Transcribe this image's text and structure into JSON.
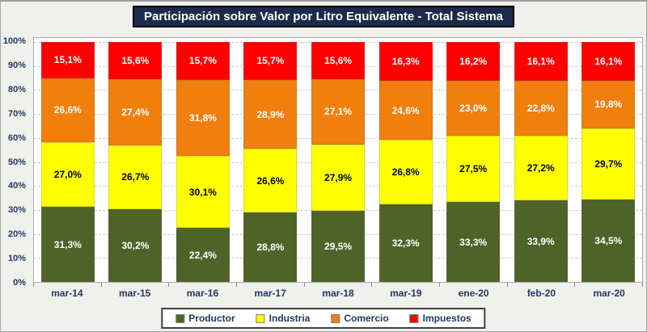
{
  "title": "Participación sobre Valor por Litro Equivalente - Total Sistema",
  "colors": {
    "frame_background": "#F0F0EC",
    "plot_background": "#FFFFFF",
    "title_background": "#1C2B4A",
    "title_text": "#FFFFFF",
    "axis_text": "#1F3864",
    "gridline": "#C9C9C9",
    "productor": "#4F6228",
    "industria": "#FFFF00",
    "comercio": "#F07F0E",
    "impuestos": "#FE0000"
  },
  "chart_data": {
    "type": "bar",
    "stacked": true,
    "title": "Participación sobre Valor por Litro Equivalente - Total Sistema",
    "xlabel": "",
    "ylabel": "",
    "ylim": [
      0,
      100
    ],
    "ytick_step": 10,
    "yticks": [
      "0%",
      "10%",
      "20%",
      "30%",
      "40%",
      "50%",
      "60%",
      "70%",
      "80%",
      "90%",
      "100%"
    ],
    "grid": "dashed-horizontal",
    "legend_position": "bottom",
    "value_format": "decimal-comma-percent",
    "categories": [
      "mar-14",
      "mar-15",
      "mar-16",
      "mar-17",
      "mar-18",
      "mar-19",
      "ene-20",
      "feb-20",
      "mar-20"
    ],
    "series": [
      {
        "name": "Productor",
        "color": "#4F6228",
        "label_color": "#FFFFFF",
        "values": [
          31.3,
          30.2,
          22.4,
          28.8,
          29.5,
          32.3,
          33.3,
          33.9,
          34.5
        ]
      },
      {
        "name": "Industria",
        "color": "#FFFF00",
        "label_color": "#000000",
        "values": [
          27.0,
          26.7,
          30.1,
          26.6,
          27.9,
          26.8,
          27.5,
          27.2,
          29.7
        ]
      },
      {
        "name": "Comercio",
        "color": "#F07F0E",
        "label_color": "#FFFFFF",
        "values": [
          26.6,
          27.4,
          31.8,
          28.9,
          27.1,
          24.6,
          23.0,
          22.8,
          19.8
        ]
      },
      {
        "name": "Impuestos",
        "color": "#FE0000",
        "label_color": "#FFFFFF",
        "values": [
          15.1,
          15.6,
          15.7,
          15.7,
          15.6,
          16.3,
          16.2,
          16.1,
          16.1
        ]
      }
    ]
  }
}
